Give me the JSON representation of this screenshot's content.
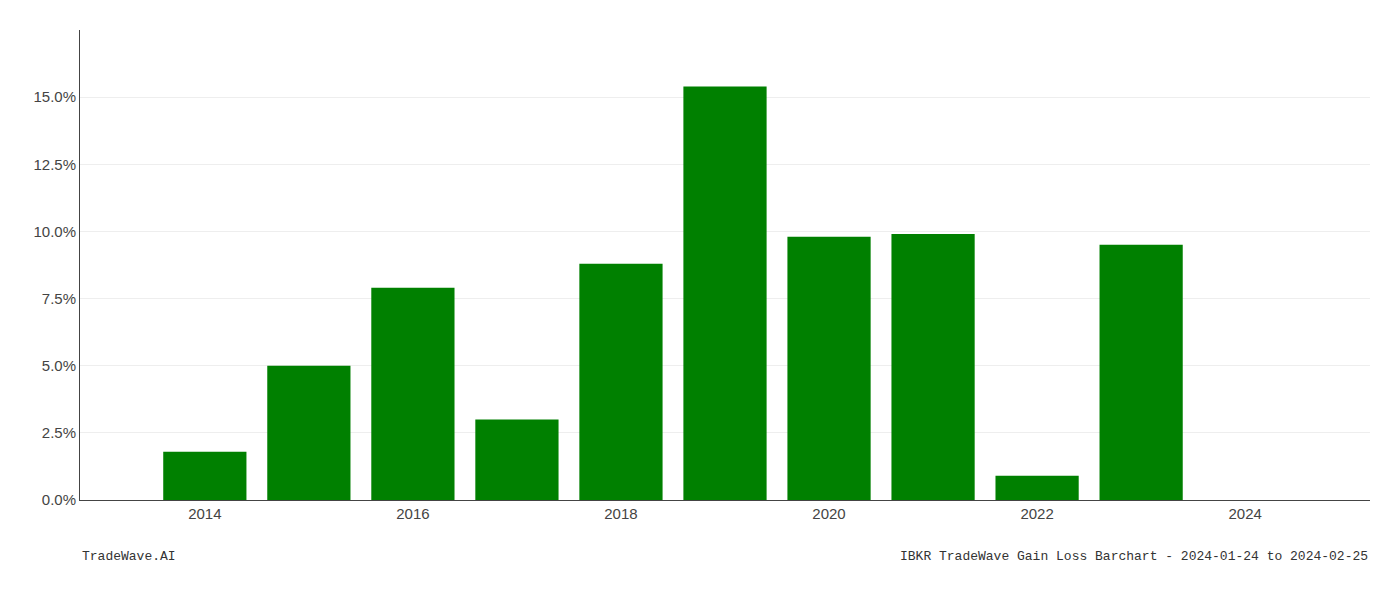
{
  "chart_data": {
    "type": "bar",
    "x": [
      2014,
      2015,
      2016,
      2017,
      2018,
      2019,
      2020,
      2021,
      2022,
      2023
    ],
    "values": [
      0.018,
      0.05,
      0.079,
      0.03,
      0.088,
      0.154,
      0.098,
      0.099,
      0.009,
      0.095
    ],
    "color": "#008000",
    "xlim": [
      2012.8,
      2025.2
    ],
    "xticks": [
      2014,
      2016,
      2018,
      2020,
      2022,
      2024
    ],
    "ylim": [
      0,
      0.175
    ],
    "yticks": [
      {
        "value": 0.0,
        "label": "0.0%"
      },
      {
        "value": 0.025,
        "label": "2.5%"
      },
      {
        "value": 0.05,
        "label": "5.0%"
      },
      {
        "value": 0.075,
        "label": "7.5%"
      },
      {
        "value": 0.1,
        "label": "10.0%"
      },
      {
        "value": 0.125,
        "label": "12.5%"
      },
      {
        "value": 0.15,
        "label": "15.0%"
      }
    ],
    "grid": true,
    "annotations": [
      "TradeWave.AI",
      "IBKR TradeWave Gain Loss Barchart - 2024-01-24 to 2024-02-25"
    ]
  }
}
